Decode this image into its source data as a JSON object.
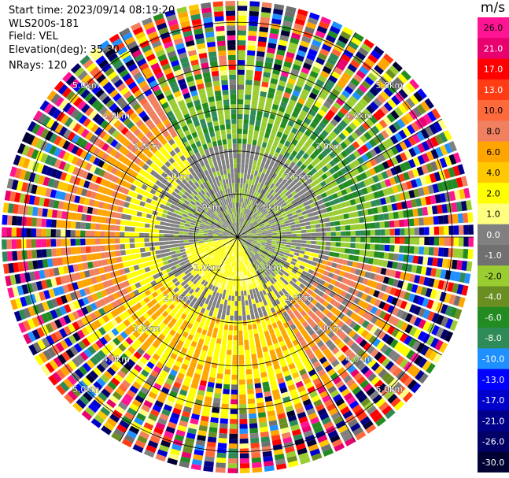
{
  "info": {
    "start_time": "Start time: 2023/09/14 08:19:20",
    "instrument": "WLS200s-181",
    "field": "Field: VEL",
    "elevation": "Elevation(deg): 35.30",
    "nrays": "NRays: 120"
  },
  "chart_data": {
    "type": "heatmap",
    "projection": "polar",
    "field": "VEL",
    "units": "m/s",
    "nrays": 120,
    "ring_labels": [
      "1.0km",
      "2.0km",
      "3.0km",
      "4.0km",
      "5.0km"
    ],
    "ring_ranges_km": [
      1.0,
      2.0,
      3.0,
      4.0,
      5.0
    ],
    "max_range_km": 5.5,
    "colorbar": {
      "title": "m/s",
      "ticks": [
        "26.0",
        "21.0",
        "17.0",
        "13.0",
        "10.0",
        "8.0",
        "6.0",
        "4.0",
        "2.0",
        "1.0",
        "0.0",
        "-1.0",
        "-2.0",
        "-4.0",
        "-6.0",
        "-8.0",
        "-10.0",
        "-13.0",
        "-17.0",
        "-21.0",
        "-26.0",
        "-30.0"
      ],
      "colors": [
        "#ff1493",
        "#e8006e",
        "#ff0000",
        "#ff3c14",
        "#ff6a3c",
        "#f08060",
        "#ffa500",
        "#ffc800",
        "#ffff00",
        "#ffff80",
        "#808080",
        "#707070",
        "#9acd32",
        "#6b8e23",
        "#228b22",
        "#2e8b57",
        "#1e90ff",
        "#0000ff",
        "#0000cd",
        "#00008b",
        "#000066",
        "#000033"
      ]
    }
  }
}
